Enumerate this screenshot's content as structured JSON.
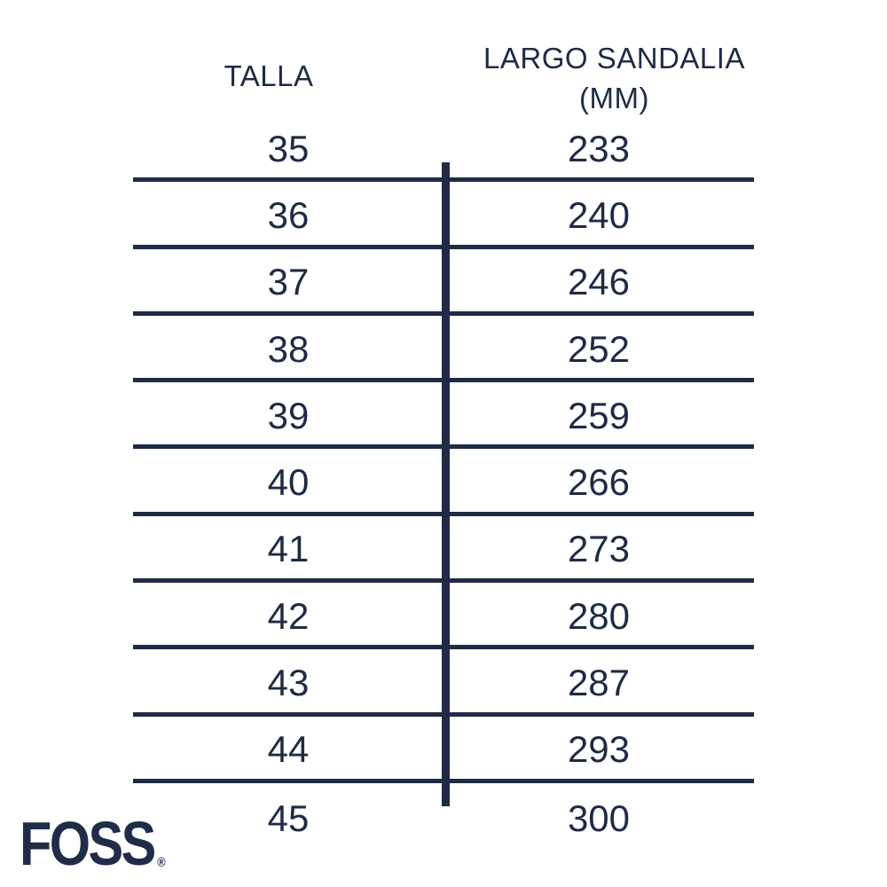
{
  "table": {
    "header": {
      "col1": "TALLA",
      "col2_line1": "LARGO SANDALIA",
      "col2_line2": "(MM)"
    },
    "rows": [
      {
        "talla": "35",
        "largo": "233"
      },
      {
        "talla": "36",
        "largo": "240"
      },
      {
        "talla": "37",
        "largo": "246"
      },
      {
        "talla": "38",
        "largo": "252"
      },
      {
        "talla": "39",
        "largo": "259"
      },
      {
        "talla": "40",
        "largo": "266"
      },
      {
        "talla": "41",
        "largo": "273"
      },
      {
        "talla": "42",
        "largo": "280"
      },
      {
        "talla": "43",
        "largo": "287"
      },
      {
        "talla": "44",
        "largo": "293"
      },
      {
        "talla": "45",
        "largo": "300"
      }
    ]
  },
  "logo": {
    "text": "FOSS",
    "registered": "®"
  },
  "colors": {
    "ink": "#1f2b45",
    "background": "#ffffff"
  },
  "chart_data": {
    "type": "table",
    "title": "Sandal size chart",
    "columns": [
      "TALLA",
      "LARGO SANDALIA (MM)"
    ],
    "rows": [
      [
        35,
        233
      ],
      [
        36,
        240
      ],
      [
        37,
        246
      ],
      [
        38,
        252
      ],
      [
        39,
        259
      ],
      [
        40,
        266
      ],
      [
        41,
        273
      ],
      [
        42,
        280
      ],
      [
        43,
        287
      ],
      [
        44,
        293
      ],
      [
        45,
        300
      ]
    ],
    "layout": {
      "grid": "horizontal-rules-and-center-divider",
      "legend": "none"
    }
  }
}
